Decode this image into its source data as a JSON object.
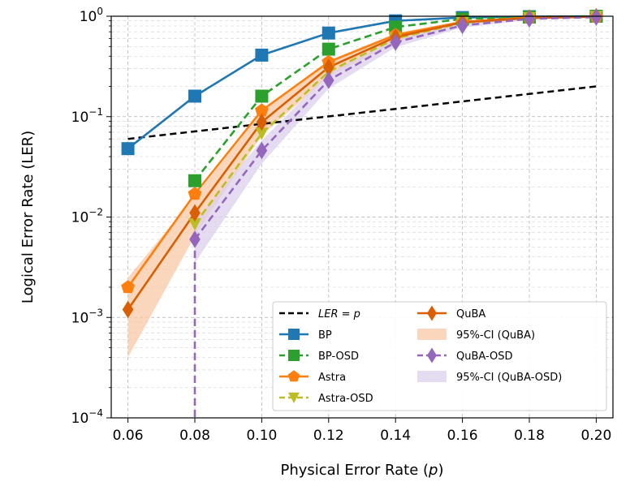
{
  "chart_data": {
    "type": "line",
    "xlabel": "Physical Error Rate (p)",
    "ylabel": "Logical Error Rate (LER)",
    "yscale": "log",
    "xlim": [
      0.055,
      0.205
    ],
    "ylim": [
      0.0001,
      1.0
    ],
    "x_ticks": [
      0.06,
      0.08,
      0.1,
      0.12,
      0.14,
      0.16,
      0.18,
      0.2
    ],
    "x_tick_labels": [
      "0.06",
      "0.08",
      "0.10",
      "0.12",
      "0.14",
      "0.16",
      "0.18",
      "0.20"
    ],
    "y_ticks": [
      0.0001,
      0.001,
      0.01,
      0.1,
      1.0
    ],
    "y_tick_labels": [
      {
        "base": "10",
        "exp": "−4"
      },
      {
        "base": "10",
        "exp": "−3"
      },
      {
        "base": "10",
        "exp": "−2"
      },
      {
        "base": "10",
        "exp": "−1"
      },
      {
        "base": "10",
        "exp": "0"
      }
    ],
    "grid": true,
    "legend_position": "bottom-right",
    "reference_line": {
      "label": "LER = p",
      "color": "#000000",
      "dash": true,
      "x": [
        0.06,
        0.2
      ],
      "y": [
        0.06,
        0.2
      ]
    },
    "series": [
      {
        "name": "BP",
        "color": "#1f77b4",
        "dash": false,
        "marker": "square",
        "x": [
          0.06,
          0.08,
          0.1,
          0.12,
          0.14,
          0.16,
          0.18,
          0.2
        ],
        "values": [
          0.048,
          0.16,
          0.41,
          0.68,
          0.9,
          0.97,
          0.99,
          1.0
        ]
      },
      {
        "name": "BP-OSD",
        "color": "#2ca02c",
        "dash": true,
        "marker": "square",
        "x": [
          0.08,
          0.1,
          0.12,
          0.14,
          0.16,
          0.18,
          0.2
        ],
        "values": [
          0.023,
          0.16,
          0.47,
          0.78,
          0.94,
          0.98,
          1.0
        ]
      },
      {
        "name": "Astra",
        "color": "#ff7f0e",
        "dash": false,
        "marker": "pentagon",
        "x": [
          0.06,
          0.08,
          0.1,
          0.12,
          0.14,
          0.16,
          0.18,
          0.2
        ],
        "values": [
          0.002,
          0.017,
          0.115,
          0.35,
          0.65,
          0.88,
          0.97,
          0.99
        ]
      },
      {
        "name": "Astra-OSD",
        "color": "#bcbd22",
        "dash": true,
        "marker": "tri",
        "x": [
          0.08,
          0.1,
          0.12,
          0.14,
          0.16,
          0.18,
          0.2
        ],
        "values": [
          0.0085,
          0.068,
          0.28,
          0.6,
          0.86,
          0.96,
          0.99
        ]
      },
      {
        "name": "QuBA",
        "color": "#d95f02",
        "dash": false,
        "marker": "diamond",
        "x": [
          0.06,
          0.08,
          0.1,
          0.12,
          0.14,
          0.16,
          0.18,
          0.2
        ],
        "values": [
          0.0012,
          0.011,
          0.088,
          0.31,
          0.62,
          0.87,
          0.96,
          0.99
        ],
        "ci_label": "95%-CI (QuBA)",
        "ci_color": "#f7c8a6",
        "ci_lower": [
          0.0004,
          0.0065,
          0.065,
          0.25,
          0.55,
          0.83,
          0.94,
          0.98
        ],
        "ci_upper": [
          0.0025,
          0.016,
          0.11,
          0.36,
          0.68,
          0.9,
          0.98,
          1.0
        ]
      },
      {
        "name": "QuBA-OSD",
        "color": "#9467bd",
        "dash": true,
        "marker": "diamond",
        "x": [
          0.08,
          0.1,
          0.12,
          0.14,
          0.16,
          0.18,
          0.2
        ],
        "values": [
          0.006,
          0.046,
          0.23,
          0.55,
          0.81,
          0.94,
          0.98
        ],
        "drop_to_floor_at": 0.08,
        "ci_label": "95%-CI (QuBA-OSD)",
        "ci_color": "#dcd0ee",
        "ci_lower": [
          0.0035,
          0.034,
          0.19,
          0.49,
          0.77,
          0.92,
          0.97
        ],
        "ci_upper": [
          0.009,
          0.058,
          0.27,
          0.6,
          0.85,
          0.96,
          0.99
        ]
      }
    ],
    "legend_left": [
      {
        "kind": "ref",
        "label_prefix": "LER",
        "label_eq": " = ",
        "label_var": "p"
      },
      {
        "kind": "series",
        "index": 0,
        "label": "BP"
      },
      {
        "kind": "series",
        "index": 1,
        "label": "BP-OSD"
      },
      {
        "kind": "series",
        "index": 2,
        "label": "Astra"
      },
      {
        "kind": "series",
        "index": 3,
        "label": "Astra-OSD"
      }
    ],
    "legend_right": [
      {
        "kind": "series",
        "index": 4,
        "label": "QuBA"
      },
      {
        "kind": "ci",
        "index": 4,
        "label": "95%-CI (QuBA)"
      },
      {
        "kind": "series",
        "index": 5,
        "label": "QuBA-OSD"
      },
      {
        "kind": "ci",
        "index": 5,
        "label": "95%-CI (QuBA-OSD)"
      }
    ]
  }
}
